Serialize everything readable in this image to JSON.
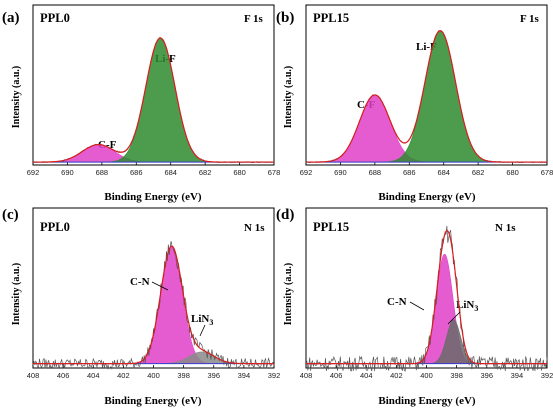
{
  "chart_data": [
    {
      "type": "area",
      "panel_label": "(a)",
      "sample": "PPL0",
      "region": "F 1s",
      "xlabel": "Binding Energy (eV)",
      "ylabel": "Intensity (a.u.)",
      "xlim": [
        692,
        678
      ],
      "x_ticks": [
        "692",
        "690",
        "688",
        "686",
        "684",
        "682",
        "680",
        "678"
      ],
      "y_max": 1.0,
      "noise": 0.004,
      "baseline": 0.02,
      "peaks": [
        {
          "label": "C-F",
          "center": 688.2,
          "fwhm": 2.2,
          "height": 0.12,
          "color": "#e040c8"
        },
        {
          "label": "Li-F",
          "center": 684.6,
          "fwhm": 2.0,
          "height": 0.85,
          "color": "#2e8b2e"
        }
      ],
      "colors": {
        "raw": "#555555",
        "envelope": "#d81e1e",
        "background": "#3a3ad0"
      }
    },
    {
      "type": "area",
      "panel_label": "(b)",
      "sample": "PPL15",
      "region": "F 1s",
      "xlabel": "Binding Energy (eV)",
      "ylabel": "Intensity (a.u.)",
      "xlim": [
        692,
        678
      ],
      "x_ticks": [
        "692",
        "690",
        "688",
        "686",
        "684",
        "682",
        "680",
        "678"
      ],
      "y_max": 1.0,
      "noise": 0.004,
      "baseline": 0.02,
      "peaks": [
        {
          "label": "C-F",
          "center": 688.0,
          "fwhm": 2.1,
          "height": 0.46,
          "color": "#e040c8"
        },
        {
          "label": "Li-F",
          "center": 684.2,
          "fwhm": 2.1,
          "height": 0.9,
          "color": "#2e8b2e"
        }
      ],
      "colors": {
        "raw": "#555555",
        "envelope": "#d81e1e",
        "background": "#3a3ad0"
      }
    },
    {
      "type": "area",
      "panel_label": "(c)",
      "sample": "PPL0",
      "region": "N 1s",
      "xlabel": "Binding Energy (eV)",
      "ylabel": "Intensity (a.u.)",
      "xlim": [
        408,
        392
      ],
      "x_ticks": [
        "408",
        "406",
        "404",
        "402",
        "400",
        "398",
        "396",
        "394",
        "392"
      ],
      "y_max": 1.0,
      "noise": 0.035,
      "baseline": 0.03,
      "peaks": [
        {
          "label": "C-N",
          "center": 398.8,
          "fwhm": 1.7,
          "height": 0.8,
          "color": "#e040c8"
        },
        {
          "label": "LiN3",
          "center": 396.8,
          "fwhm": 2.0,
          "height": 0.08,
          "color": "#8a8a8a"
        }
      ],
      "colors": {
        "raw": "#555555",
        "envelope": "#d81e1e",
        "background": "#3a3ad0"
      }
    },
    {
      "type": "area",
      "panel_label": "(d)",
      "sample": "PPL15",
      "region": "N 1s",
      "xlabel": "Binding Energy (eV)",
      "ylabel": "Intensity (a.u.)",
      "xlim": [
        408,
        392
      ],
      "x_ticks": [
        "408",
        "406",
        "404",
        "402",
        "400",
        "398",
        "396",
        "394",
        "392"
      ],
      "y_max": 1.0,
      "noise": 0.05,
      "baseline": 0.03,
      "peaks": [
        {
          "label": "C-N",
          "center": 398.8,
          "fwhm": 1.3,
          "height": 0.75,
          "color": "#e040c8"
        },
        {
          "label": "LiN3",
          "center": 398.2,
          "fwhm": 1.1,
          "height": 0.3,
          "color": "#6a6a6a"
        }
      ],
      "colors": {
        "raw": "#555555",
        "envelope": "#d81e1e",
        "background": "#3a3ad0"
      }
    }
  ]
}
